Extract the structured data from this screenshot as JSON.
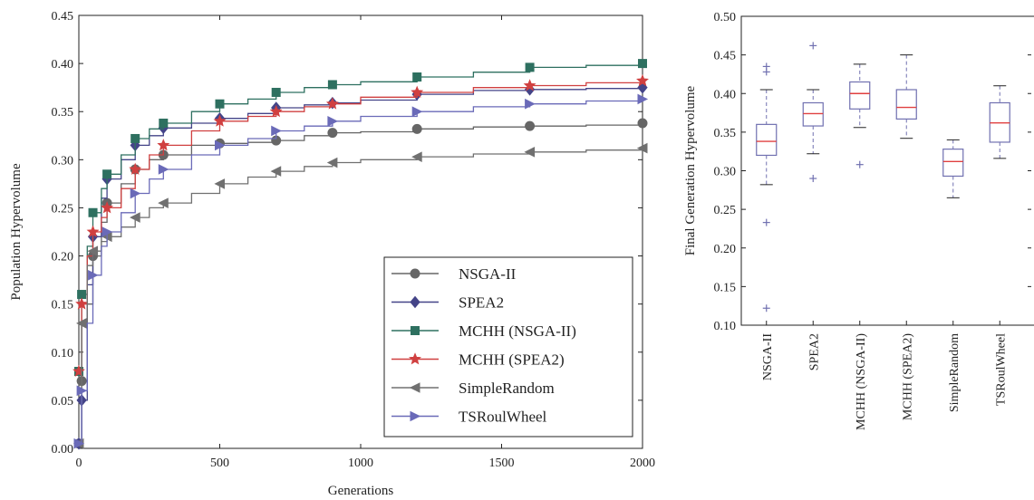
{
  "chart_data": [
    {
      "type": "line",
      "xlabel": "Generations",
      "ylabel": "Population Hypervolume",
      "xlim": [
        0,
        2000
      ],
      "ylim": [
        0,
        0.45
      ],
      "xticks": [
        0,
        500,
        1000,
        1500,
        2000
      ],
      "xtick_labels": [
        "0",
        "500",
        "1000",
        "1500",
        "2000"
      ],
      "yticks": [
        0,
        0.05,
        0.1,
        0.15,
        0.2,
        0.25,
        0.3,
        0.35,
        0.4,
        0.45
      ],
      "ytick_labels": [
        "0.00",
        "0.05",
        "0.10",
        "0.15",
        "0.20",
        "0.25",
        "0.30",
        "0.35",
        "0.40",
        "0.45"
      ],
      "grid": false,
      "legend_position": "bottom-right",
      "series": [
        {
          "name": "NSGA-II",
          "color": "#666666",
          "marker": "circle",
          "x": [
            0,
            10,
            30,
            50,
            80,
            100,
            150,
            200,
            250,
            300,
            400,
            500,
            600,
            700,
            800,
            900,
            1000,
            1200,
            1400,
            1600,
            1800,
            2000
          ],
          "y": [
            0.005,
            0.07,
            0.15,
            0.2,
            0.235,
            0.255,
            0.275,
            0.29,
            0.3,
            0.305,
            0.315,
            0.317,
            0.318,
            0.32,
            0.325,
            0.328,
            0.329,
            0.332,
            0.334,
            0.335,
            0.336,
            0.338
          ]
        },
        {
          "name": "SPEA2",
          "color": "#444488",
          "marker": "diamond",
          "x": [
            0,
            10,
            30,
            50,
            80,
            100,
            150,
            200,
            250,
            300,
            400,
            500,
            600,
            700,
            800,
            900,
            1000,
            1200,
            1400,
            1600,
            1800,
            2000
          ],
          "y": [
            0.005,
            0.05,
            0.17,
            0.22,
            0.26,
            0.28,
            0.3,
            0.315,
            0.325,
            0.333,
            0.338,
            0.343,
            0.348,
            0.354,
            0.357,
            0.359,
            0.362,
            0.368,
            0.372,
            0.373,
            0.374,
            0.375
          ]
        },
        {
          "name": "MCHH (NSGA-II)",
          "color": "#2e7060",
          "marker": "square",
          "x": [
            0,
            10,
            30,
            50,
            80,
            100,
            150,
            200,
            250,
            300,
            400,
            500,
            600,
            700,
            800,
            900,
            1000,
            1200,
            1400,
            1600,
            1800,
            2000
          ],
          "y": [
            0.08,
            0.16,
            0.21,
            0.245,
            0.27,
            0.285,
            0.305,
            0.322,
            0.332,
            0.338,
            0.35,
            0.358,
            0.363,
            0.37,
            0.375,
            0.378,
            0.381,
            0.386,
            0.391,
            0.396,
            0.398,
            0.4
          ]
        },
        {
          "name": "MCHH (SPEA2)",
          "color": "#d04040",
          "marker": "star",
          "x": [
            0,
            10,
            30,
            50,
            80,
            100,
            150,
            200,
            250,
            300,
            400,
            500,
            600,
            700,
            800,
            900,
            1000,
            1200,
            1400,
            1600,
            1800,
            2000
          ],
          "y": [
            0.08,
            0.15,
            0.2,
            0.225,
            0.24,
            0.25,
            0.27,
            0.29,
            0.305,
            0.315,
            0.33,
            0.34,
            0.345,
            0.35,
            0.355,
            0.358,
            0.365,
            0.37,
            0.375,
            0.377,
            0.38,
            0.382
          ]
        },
        {
          "name": "SimpleRandom",
          "color": "#707070",
          "marker": "triangle-left",
          "x": [
            0,
            10,
            30,
            50,
            80,
            100,
            150,
            200,
            250,
            300,
            400,
            500,
            600,
            700,
            800,
            900,
            1000,
            1200,
            1400,
            1600,
            1800,
            2000
          ],
          "y": [
            0.005,
            0.13,
            0.19,
            0.205,
            0.215,
            0.22,
            0.23,
            0.24,
            0.25,
            0.255,
            0.265,
            0.275,
            0.282,
            0.288,
            0.293,
            0.297,
            0.3,
            0.303,
            0.306,
            0.308,
            0.31,
            0.312
          ]
        },
        {
          "name": "TSRoulWheel",
          "color": "#6a6ab8",
          "marker": "triangle-right",
          "x": [
            0,
            10,
            30,
            50,
            80,
            100,
            150,
            200,
            250,
            300,
            400,
            500,
            600,
            700,
            800,
            900,
            1000,
            1200,
            1400,
            1600,
            1800,
            2000
          ],
          "y": [
            0.005,
            0.06,
            0.13,
            0.18,
            0.21,
            0.225,
            0.245,
            0.265,
            0.28,
            0.29,
            0.305,
            0.315,
            0.322,
            0.33,
            0.335,
            0.34,
            0.345,
            0.35,
            0.355,
            0.358,
            0.361,
            0.363
          ]
        }
      ]
    },
    {
      "type": "box",
      "ylabel": "Final Generation Hypervolume",
      "ylim": [
        0.1,
        0.5
      ],
      "yticks": [
        0.1,
        0.15,
        0.2,
        0.25,
        0.3,
        0.35,
        0.4,
        0.45,
        0.5
      ],
      "ytick_labels": [
        "0.10",
        "0.15",
        "0.20",
        "0.25",
        "0.30",
        "0.35",
        "0.40",
        "0.45",
        "0.50"
      ],
      "categories": [
        "NSGA-II",
        "SPEA2",
        "MCHH (NSGA-II)",
        "MCHH (SPEA2)",
        "SimpleRandom",
        "TSRoulWheel"
      ],
      "median_color": "#e04040",
      "box_color": "#7070b0",
      "boxes": [
        {
          "whisker_low": 0.282,
          "q1": 0.32,
          "median": 0.338,
          "q3": 0.36,
          "whisker_high": 0.405,
          "outliers": [
            0.435,
            0.428,
            0.233,
            0.122
          ]
        },
        {
          "whisker_low": 0.322,
          "q1": 0.358,
          "median": 0.374,
          "q3": 0.388,
          "whisker_high": 0.405,
          "outliers": [
            0.462,
            0.29
          ]
        },
        {
          "whisker_low": 0.356,
          "q1": 0.38,
          "median": 0.4,
          "q3": 0.415,
          "whisker_high": 0.438,
          "outliers": [
            0.308
          ]
        },
        {
          "whisker_low": 0.342,
          "q1": 0.367,
          "median": 0.382,
          "q3": 0.405,
          "whisker_high": 0.45,
          "outliers": []
        },
        {
          "whisker_low": 0.265,
          "q1": 0.293,
          "median": 0.312,
          "q3": 0.328,
          "whisker_high": 0.34,
          "outliers": []
        },
        {
          "whisker_low": 0.316,
          "q1": 0.337,
          "median": 0.362,
          "q3": 0.388,
          "whisker_high": 0.41,
          "outliers": []
        }
      ]
    }
  ]
}
